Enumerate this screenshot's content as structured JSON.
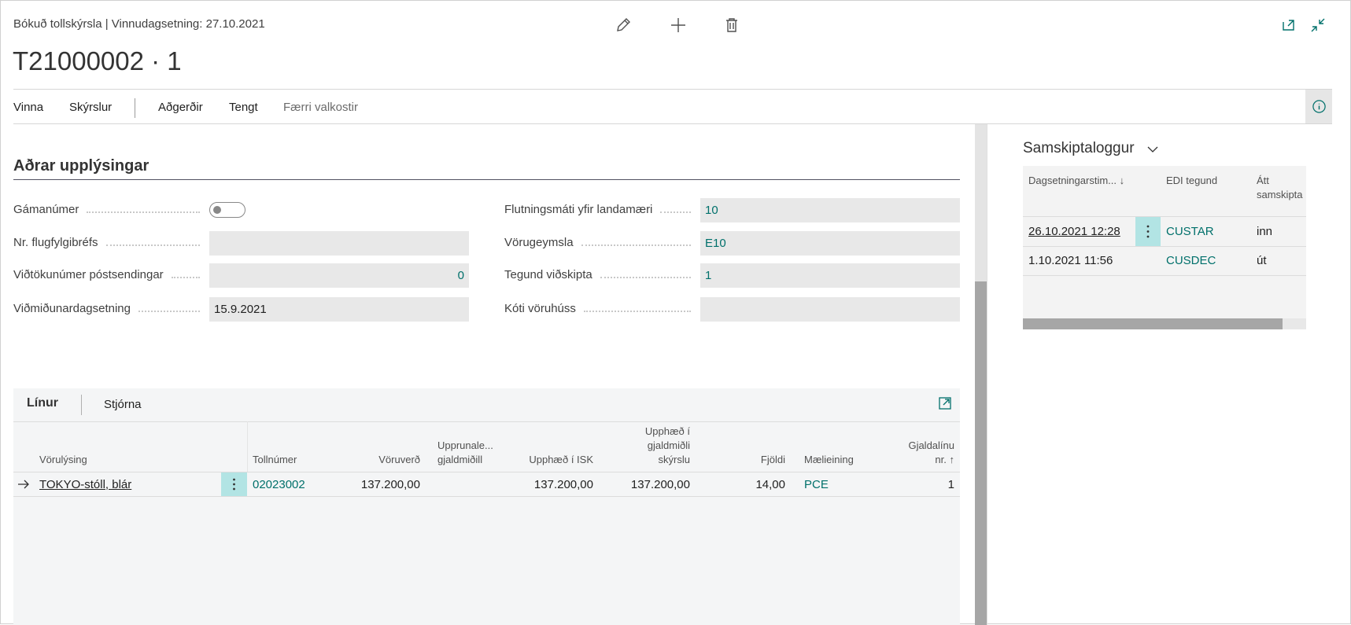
{
  "header": {
    "breadcrumb": "Bókuð tollskýrsla | Vinnudagsetning: 27.10.2021",
    "title": "T21000002 · 1"
  },
  "actions": [
    {
      "label": "Vinna"
    },
    {
      "label": "Skýrslur"
    },
    {
      "label": "Aðgerðir"
    },
    {
      "label": "Tengt"
    },
    {
      "label": "Færri valkostir",
      "muted": true
    }
  ],
  "section": {
    "title": "Aðrar upplýsingar",
    "left_fields": [
      {
        "label": "Gámanúmer",
        "toggle": false
      },
      {
        "label": "Nr. flugfylgibréfs"
      },
      {
        "label": "Viðtökunúmer póstsendingar",
        "value": "0",
        "numeric": true
      },
      {
        "label": "Viðmiðunardagsetning",
        "value": "15.9.2021"
      }
    ],
    "right_fields": [
      {
        "label": "Flutningsmáti yfir landamæri",
        "value": "10",
        "link": true
      },
      {
        "label": "Vörugeymsla",
        "value": "E10",
        "link": true
      },
      {
        "label": "Tegund viðskipta",
        "value": "1",
        "link": true
      },
      {
        "label": "Kóti vöruhúss"
      }
    ]
  },
  "factbox": {
    "title": "Samskiptaloggur",
    "columns": [
      "Dagsetningarstim... ↓",
      "EDI tegund",
      "Átt samskipta"
    ],
    "rows": [
      [
        "26.10.2021 12:28",
        "CUSTAR",
        "inn"
      ],
      [
        "1.10.2021 11:56",
        "CUSDEC",
        "út"
      ]
    ]
  },
  "lines": {
    "tabs": [
      "Línur",
      "Stjórna"
    ],
    "columns": [
      "Vörulýsing",
      "Tollnúmer",
      "Vöruverð",
      "Upprunale... gjaldmiðill",
      "Upphæð í ISK",
      "Upphæð í gjaldmiðli skýrslu",
      "Fjöldi",
      "Mælieining",
      "Gjaldalínu nr. ↑"
    ],
    "rows": [
      [
        "TOKYO-stóll, blár",
        "02023002",
        "137.200,00",
        null,
        "137.200,00",
        "137.200,00",
        "14,00",
        "PCE",
        "1"
      ]
    ]
  }
}
